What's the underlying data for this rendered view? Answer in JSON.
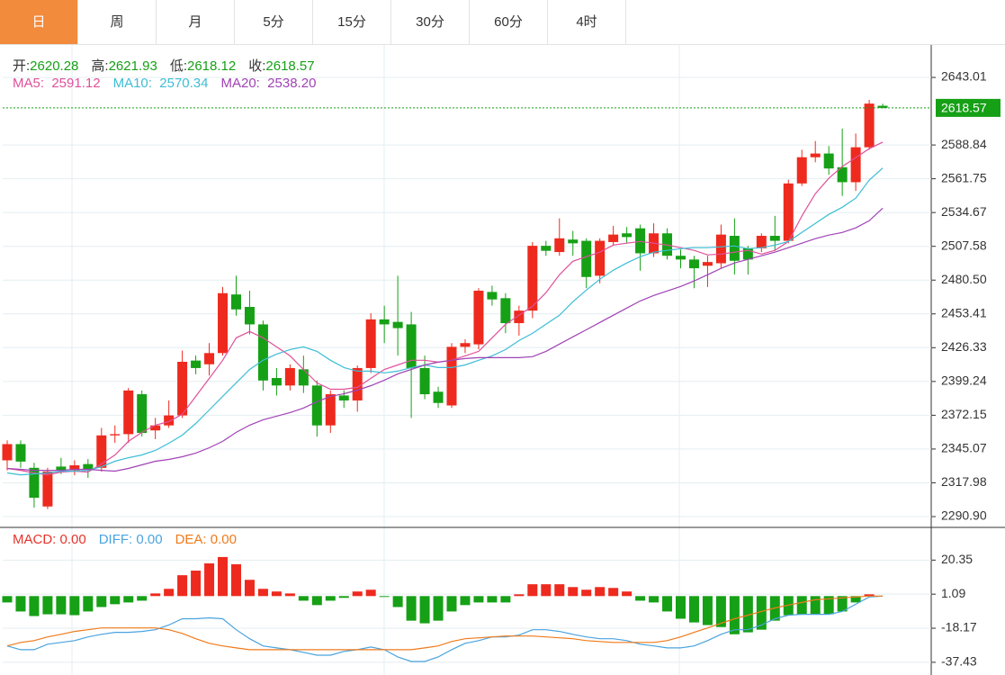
{
  "tabs": [
    "日",
    "周",
    "月",
    "5分",
    "15分",
    "30分",
    "60分",
    "4时"
  ],
  "active_tab": 0,
  "chart_data": [
    {
      "type": "candlestick",
      "ohlc_labels": [
        "开:",
        "高:",
        "低:",
        "收:"
      ],
      "up_color": "#ee2a1e",
      "down_color": "#16a016",
      "readout_color": "#16a016",
      "open": [
        2336,
        2349,
        2330,
        2299,
        2331,
        2328,
        2333,
        2330,
        2356,
        2357,
        2389,
        2360,
        2364,
        2372,
        2416,
        2413,
        2422,
        2469,
        2459,
        2445,
        2402,
        2396,
        2409,
        2396,
        2364,
        2388,
        2384,
        2410,
        2449,
        2447,
        2445,
        2410,
        2391,
        2380,
        2427,
        2429,
        2471,
        2466,
        2446,
        2456,
        2508,
        2503,
        2513,
        2512,
        2484,
        2511,
        2518,
        2522,
        2502,
        2518,
        2500,
        2497,
        2492,
        2494,
        2516,
        2506,
        2506,
        2516,
        2512,
        2558,
        2579,
        2582,
        2571,
        2559,
        2587,
        2620.28
      ],
      "close": [
        2349,
        2335,
        2306,
        2327,
        2328,
        2332,
        2329,
        2356,
        2357,
        2392,
        2358,
        2364,
        2372,
        2415,
        2410,
        2422,
        2470,
        2457,
        2445,
        2400,
        2396,
        2410,
        2396,
        2364,
        2389,
        2384,
        2410,
        2449,
        2445,
        2442,
        2410,
        2389,
        2382,
        2427,
        2430,
        2472,
        2465,
        2446,
        2456,
        2508,
        2504,
        2514,
        2510,
        2483,
        2512,
        2517,
        2515,
        2502,
        2518,
        2500,
        2497,
        2490,
        2495,
        2517,
        2496,
        2497,
        2516,
        2512,
        2558,
        2579,
        2582,
        2570,
        2559,
        2587,
        2622,
        2618.57
      ],
      "low": [
        2328,
        2330,
        2298,
        2297,
        2325,
        2324,
        2322,
        2327,
        2350,
        2350,
        2355,
        2353,
        2362,
        2370,
        2405,
        2404,
        2420,
        2452,
        2437,
        2392,
        2388,
        2392,
        2390,
        2355,
        2358,
        2378,
        2375,
        2406,
        2430,
        2420,
        2370,
        2385,
        2378,
        2378,
        2422,
        2425,
        2460,
        2438,
        2436,
        2450,
        2500,
        2500,
        2500,
        2474,
        2478,
        2508,
        2510,
        2488,
        2499,
        2497,
        2490,
        2474,
        2475,
        2490,
        2485,
        2485,
        2503,
        2504,
        2510,
        2556,
        2575,
        2565,
        2548,
        2552,
        2585,
        2618.12
      ],
      "high": [
        2352,
        2352,
        2334,
        2330,
        2338,
        2336,
        2337,
        2362,
        2364,
        2394,
        2392,
        2370,
        2384,
        2424,
        2420,
        2430,
        2475,
        2484,
        2472,
        2448,
        2410,
        2413,
        2420,
        2400,
        2392,
        2392,
        2412,
        2454,
        2460,
        2484,
        2455,
        2420,
        2395,
        2430,
        2433,
        2474,
        2476,
        2470,
        2460,
        2511,
        2512,
        2530,
        2520,
        2514,
        2514,
        2524,
        2523,
        2525,
        2526,
        2522,
        2505,
        2500,
        2500,
        2525,
        2530,
        2508,
        2518,
        2532,
        2561,
        2585,
        2592,
        2588,
        2602,
        2598,
        2625,
        2621.93
      ],
      "series": [
        {
          "name": "MA5",
          "color": "#e0509a",
          "readout": "MA5:  2591.12",
          "values": [
            2329.5,
            2328.0,
            2325.9,
            2324.4,
            2326.6,
            2327.3,
            2326.6,
            2333.1,
            2340.3,
            2351.2,
            2358.4,
            2364.2,
            2367.1,
            2372.9,
            2387.3,
            2401.7,
            2416.2,
            2434.2,
            2439.3,
            2434.2,
            2427.0,
            2419.8,
            2408.9,
            2398.1,
            2393.0,
            2393.0,
            2394.5,
            2401.7,
            2408.9,
            2412.5,
            2416.2,
            2416.2,
            2414.7,
            2416.2,
            2419.8,
            2423.4,
            2434.2,
            2445.1,
            2452.3,
            2459.5,
            2470.4,
            2484.8,
            2495.6,
            2499.3,
            2502.9,
            2508.6,
            2510.1,
            2511.5,
            2510.1,
            2508.6,
            2506.5,
            2504.3,
            2500.7,
            2501.4,
            2502.9,
            2504.3,
            2501.4,
            2504.3,
            2511.5,
            2531.8,
            2549.8,
            2562.1,
            2571.5,
            2578.7,
            2585.9,
            2591.12
          ]
        },
        {
          "name": "MA10",
          "color": "#3cbdd6",
          "readout": "MA10:  2570.34",
          "values": [
            2325.9,
            2324.4,
            2325.1,
            2325.9,
            2327.3,
            2327.3,
            2328.0,
            2330.9,
            2335.3,
            2338.1,
            2340.3,
            2343.9,
            2349.7,
            2356.2,
            2365.6,
            2376.4,
            2387.3,
            2398.1,
            2408.9,
            2416.2,
            2421.2,
            2424.8,
            2427.0,
            2423.4,
            2416.2,
            2410.4,
            2407.5,
            2407.5,
            2406.1,
            2407.5,
            2410.4,
            2412.5,
            2410.4,
            2410.4,
            2412.5,
            2416.2,
            2419.8,
            2424.8,
            2432.0,
            2437.8,
            2445.1,
            2452.3,
            2463.1,
            2472.5,
            2481.2,
            2488.4,
            2494.2,
            2499.3,
            2502.9,
            2504.3,
            2505.7,
            2506.5,
            2506.5,
            2507.2,
            2507.9,
            2505.7,
            2506.5,
            2508.6,
            2511.5,
            2518.7,
            2525.9,
            2533.2,
            2538.9,
            2546.2,
            2560.6,
            2570.34
          ]
        },
        {
          "name": "MA20",
          "color": "#a043b4",
          "readout": "MA20:  2538.20",
          "values": [
            2329.5,
            2328.8,
            2328.0,
            2328.0,
            2328.0,
            2328.8,
            2328.8,
            2328.0,
            2327.3,
            2329.5,
            2332.4,
            2335.3,
            2336.7,
            2338.9,
            2341.8,
            2346.1,
            2351.2,
            2358.4,
            2364.2,
            2368.5,
            2371.4,
            2374.3,
            2377.9,
            2383.0,
            2387.3,
            2389.4,
            2392.3,
            2395.9,
            2400.3,
            2405.3,
            2408.9,
            2412.5,
            2414.7,
            2416.2,
            2417.6,
            2418.3,
            2418.3,
            2418.3,
            2418.3,
            2419.1,
            2423.4,
            2429.2,
            2435.0,
            2440.7,
            2446.5,
            2452.3,
            2458.1,
            2463.8,
            2468.2,
            2471.8,
            2475.4,
            2479.8,
            2484.8,
            2489.9,
            2494.2,
            2497.1,
            2500.0,
            2502.9,
            2506.5,
            2510.1,
            2513.7,
            2516.6,
            2518.7,
            2522.4,
            2528.1,
            2538.2
          ]
        }
      ],
      "ylim": [
        2282.23,
        2669.0
      ],
      "yticks": [
        2643.01,
        2588.84,
        2561.75,
        2534.67,
        2507.58,
        {
          "value": 2480.5,
          "label": "2480.50"
        },
        2453.41,
        2426.33,
        2399.24,
        2372.15,
        2345.07,
        2317.98,
        {
          "value": 2290.9,
          "label": "2290.90"
        }
      ],
      "grid": true,
      "last_price_color": "#16a016"
    },
    {
      "type": "macd",
      "histogram": {
        "name": "MACD",
        "color": "#e6332a",
        "up_color": "#ee2a1e",
        "down_color": "#16a016",
        "readout": "MACD: 0.00",
        "values": [
          -3.6,
          -8.7,
          -11.3,
          -10.3,
          -10.3,
          -10.8,
          -8.7,
          -6.2,
          -4.6,
          -3.6,
          -2.6,
          1.5,
          4.1,
          11.8,
          14.4,
          18.5,
          22.1,
          18.0,
          9.2,
          4.1,
          2.6,
          1.5,
          -2.6,
          -5.1,
          -2.6,
          -1.0,
          2.6,
          3.6,
          -0.5,
          -6.2,
          -13.9,
          -15.4,
          -13.9,
          -8.7,
          -5.1,
          -3.6,
          -3.6,
          -3.6,
          1.0,
          6.7,
          6.7,
          6.7,
          5.1,
          3.6,
          5.1,
          4.6,
          2.6,
          -2.6,
          -3.6,
          -8.7,
          -12.8,
          -14.9,
          -16.4,
          -17.5,
          -21.6,
          -20.5,
          -19.0,
          -13.9,
          -10.8,
          -10.3,
          -10.3,
          -10.3,
          -8.7,
          -3.6,
          1.0,
          0
        ]
      },
      "series": [
        {
          "name": "DIFF",
          "color": "#4aa3df",
          "readout": "DIFF: 0.00",
          "values": [
            -28.2,
            -30.3,
            -30.3,
            -27.2,
            -26.2,
            -25.2,
            -23.1,
            -21.6,
            -20.5,
            -20.5,
            -20.0,
            -19.0,
            -16.4,
            -12.8,
            -12.8,
            -12.3,
            -12.8,
            -19.0,
            -24.1,
            -28.2,
            -29.3,
            -30.3,
            -31.8,
            -33.4,
            -33.4,
            -31.3,
            -30.3,
            -28.8,
            -30.3,
            -34.4,
            -37.0,
            -37.0,
            -34.4,
            -30.3,
            -26.7,
            -25.2,
            -23.1,
            -23.1,
            -22.1,
            -19.0,
            -19.0,
            -20.0,
            -21.6,
            -23.1,
            -24.1,
            -24.1,
            -25.2,
            -27.2,
            -28.2,
            -29.3,
            -29.3,
            -28.2,
            -25.2,
            -21.6,
            -19.0,
            -19.0,
            -16.4,
            -12.8,
            -10.8,
            -10.3,
            -10.3,
            -10.3,
            -8.7,
            -4.6,
            -0.5,
            0
          ]
        },
        {
          "name": "DEA",
          "color": "#f07a1a",
          "readout": "DEA: 0.00",
          "values": [
            -28.2,
            -26.2,
            -25.2,
            -23.1,
            -21.6,
            -20.0,
            -19.0,
            -18.0,
            -18.0,
            -18.0,
            -18.0,
            -18.0,
            -19.0,
            -21.1,
            -24.1,
            -26.7,
            -28.2,
            -29.3,
            -30.3,
            -30.3,
            -30.3,
            -30.3,
            -30.3,
            -30.3,
            -30.3,
            -30.3,
            -30.3,
            -30.3,
            -30.3,
            -30.3,
            -30.3,
            -29.3,
            -28.2,
            -25.7,
            -24.1,
            -23.6,
            -23.1,
            -22.6,
            -22.6,
            -22.6,
            -23.1,
            -23.6,
            -24.1,
            -25.2,
            -25.7,
            -26.2,
            -26.2,
            -26.2,
            -26.2,
            -25.2,
            -23.1,
            -20.5,
            -18.0,
            -15.4,
            -12.8,
            -10.8,
            -8.7,
            -6.7,
            -5.1,
            -3.6,
            -2.1,
            -1.5,
            -1.0,
            -0.5,
            0,
            0
          ]
        }
      ],
      "ylim": [
        -44.62,
        38.33
      ],
      "yticks": [
        20.35,
        1.09,
        -18.17,
        -37.43
      ],
      "grid": true
    }
  ]
}
